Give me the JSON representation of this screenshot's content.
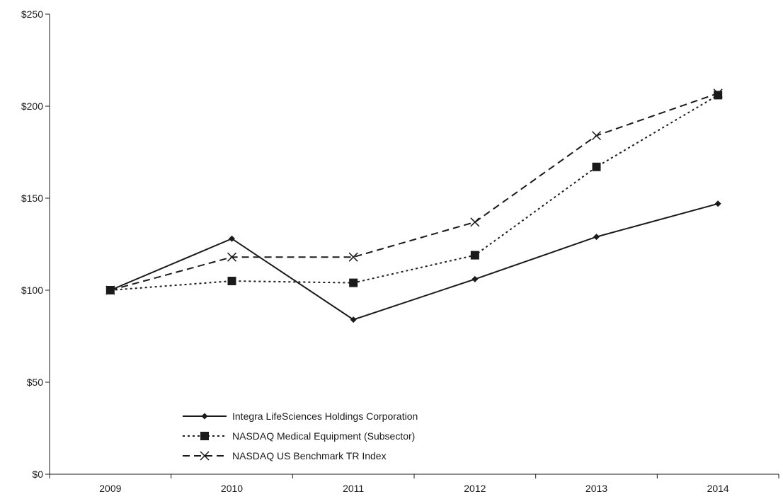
{
  "chart_data": {
    "type": "line",
    "title": "",
    "xlabel": "",
    "ylabel": "",
    "x": [
      "2009",
      "2010",
      "2011",
      "2012",
      "2013",
      "2014"
    ],
    "ylim": [
      0,
      250
    ],
    "y_ticks": [
      0,
      50,
      100,
      150,
      200,
      250
    ],
    "y_tick_labels": [
      "$0",
      "$50",
      "$100",
      "$150",
      "$200",
      "$250"
    ],
    "grid": false,
    "legend_position": "bottom-left",
    "series": [
      {
        "name": "Integra LifeSciences Holdings Corporation",
        "values": [
          100,
          128,
          84,
          106,
          129,
          147
        ],
        "line_style": "solid",
        "marker": "diamond",
        "color": "#1a1a1a"
      },
      {
        "name": "NASDAQ Medical Equipment (Subsector)",
        "values": [
          100,
          105,
          104,
          119,
          167,
          206
        ],
        "line_style": "dotted",
        "marker": "square",
        "color": "#1a1a1a"
      },
      {
        "name": "NASDAQ US Benchmark TR Index",
        "values": [
          100,
          118,
          118,
          137,
          184,
          207
        ],
        "line_style": "dashed",
        "marker": "x",
        "color": "#1a1a1a"
      }
    ]
  }
}
